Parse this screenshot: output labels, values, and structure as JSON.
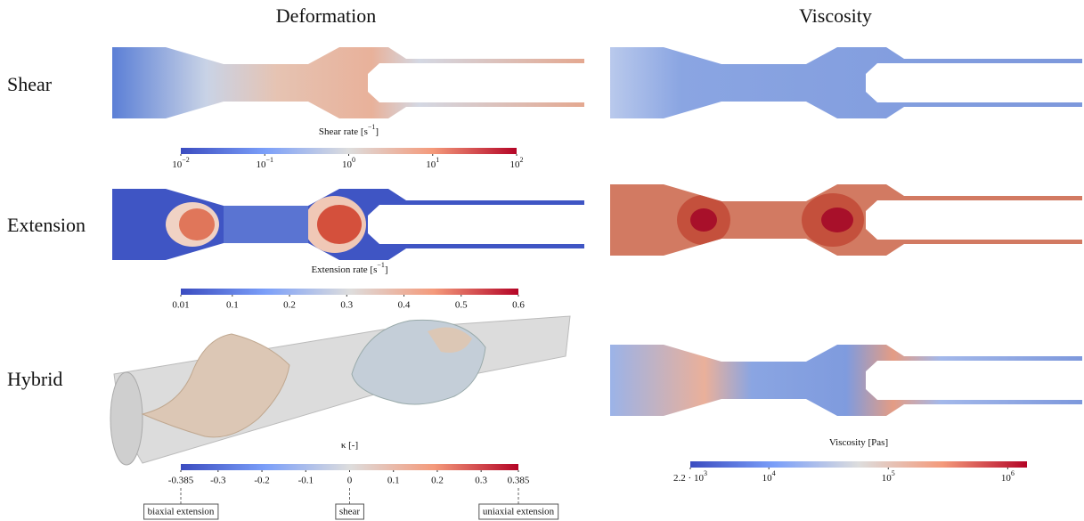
{
  "columns": [
    "Deformation",
    "Viscosity"
  ],
  "rows": [
    "Shear",
    "Extension",
    "Hybrid"
  ],
  "colorbars": [
    {
      "title": "Shear rate [s",
      "title_exp": "−1",
      "title_end": "]",
      "scale": "log",
      "lim": [
        0.01,
        100
      ],
      "ticks": [
        {
          "value": 0.01,
          "base": "10",
          "exp": "−2"
        },
        {
          "value": 0.1,
          "base": "10",
          "exp": "−1"
        },
        {
          "value": 1,
          "base": "10",
          "exp": "0"
        },
        {
          "value": 10,
          "base": "10",
          "exp": "1"
        },
        {
          "value": 100,
          "base": "10",
          "exp": "2"
        }
      ]
    },
    {
      "title": "Extension rate [s",
      "title_exp": "−1",
      "title_end": "]",
      "scale": "linear",
      "lim": [
        0.01,
        0.6
      ],
      "ticks": [
        0.01,
        0.1,
        0.2,
        0.3,
        0.4,
        0.5,
        0.6
      ]
    },
    {
      "title": "κ [-]",
      "scale": "linear",
      "lim": [
        -0.385,
        0.385
      ],
      "ticks": [
        -0.385,
        -0.3,
        -0.2,
        -0.1,
        0,
        0.1,
        0.2,
        0.3,
        0.385
      ],
      "annotations": [
        {
          "value": -0.385,
          "label": "biaxial extension"
        },
        {
          "value": 0,
          "label": "shear"
        },
        {
          "value": 0.385,
          "label": "uniaxial extension"
        }
      ]
    },
    {
      "title": "Viscosity [Pas]",
      "scale": "log",
      "lim": [
        2200,
        1450000
      ],
      "ticks": [
        {
          "value": 2200,
          "base": "2.2 · 10",
          "exp": "3"
        },
        {
          "value": 10000,
          "base": "10",
          "exp": "4"
        },
        {
          "value": 100000,
          "base": "10",
          "exp": "5"
        },
        {
          "value": 1000000,
          "base": "10",
          "exp": "6"
        }
      ]
    }
  ]
}
